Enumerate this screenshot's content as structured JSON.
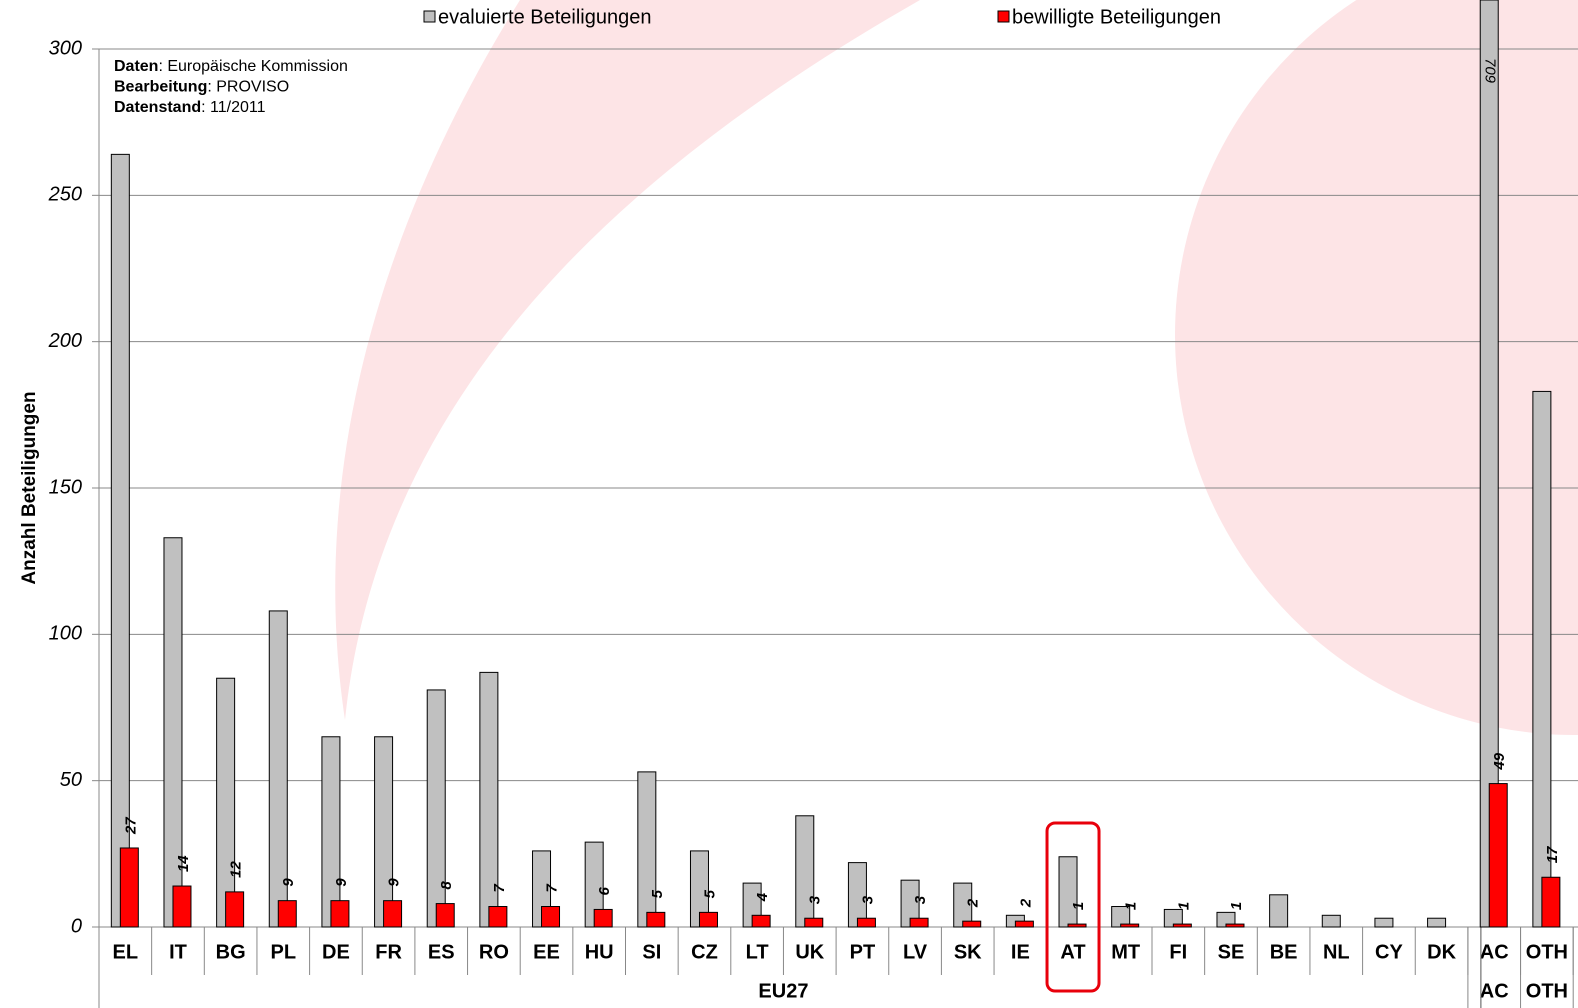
{
  "chart_data": {
    "type": "bar",
    "y_label": "Anzahl Beteiligungen",
    "annotations": [
      {
        "bold": "Daten",
        "text": ": Europäische Kommission"
      },
      {
        "bold": "Bearbeitung",
        "text": ": PROVISO"
      },
      {
        "bold": "Datenstand",
        "text": ": 11/2011"
      }
    ],
    "categories": [
      "EL",
      "IT",
      "BG",
      "PL",
      "DE",
      "FR",
      "ES",
      "RO",
      "EE",
      "HU",
      "SI",
      "CZ",
      "LT",
      "UK",
      "PT",
      "LV",
      "SK",
      "IE",
      "AT",
      "MT",
      "FI",
      "SE",
      "BE",
      "NL",
      "CY",
      "DK",
      "AC",
      "OTH"
    ],
    "groups": [
      {
        "name": "EU27",
        "span": 26
      },
      {
        "name": "AC",
        "span": 1
      },
      {
        "name": "OTH",
        "span": 1
      }
    ],
    "highlight": "AT",
    "series": [
      {
        "name": "evaluierte Beteiligungen",
        "color": "#c0c0c0",
        "values": [
          264,
          133,
          85,
          108,
          65,
          65,
          81,
          87,
          26,
          29,
          53,
          26,
          15,
          38,
          22,
          16,
          15,
          4,
          24,
          7,
          6,
          5,
          11,
          4,
          3,
          3,
          709,
          183
        ],
        "value_labels": [
          null,
          null,
          null,
          null,
          null,
          null,
          null,
          null,
          null,
          null,
          null,
          null,
          null,
          null,
          null,
          null,
          null,
          null,
          null,
          null,
          null,
          null,
          null,
          null,
          null,
          null,
          "709",
          null
        ]
      },
      {
        "name": "bewilligte Beteiligungen",
        "color": "#ff0000",
        "values": [
          27,
          14,
          12,
          9,
          9,
          9,
          8,
          7,
          7,
          6,
          5,
          5,
          4,
          3,
          3,
          3,
          2,
          2,
          1,
          1,
          1,
          1,
          null,
          null,
          null,
          null,
          49,
          17
        ]
      }
    ],
    "ylim": [
      0,
      300
    ],
    "yticks": [
      0,
      50,
      100,
      150,
      200,
      250,
      300
    ],
    "grid": true
  }
}
